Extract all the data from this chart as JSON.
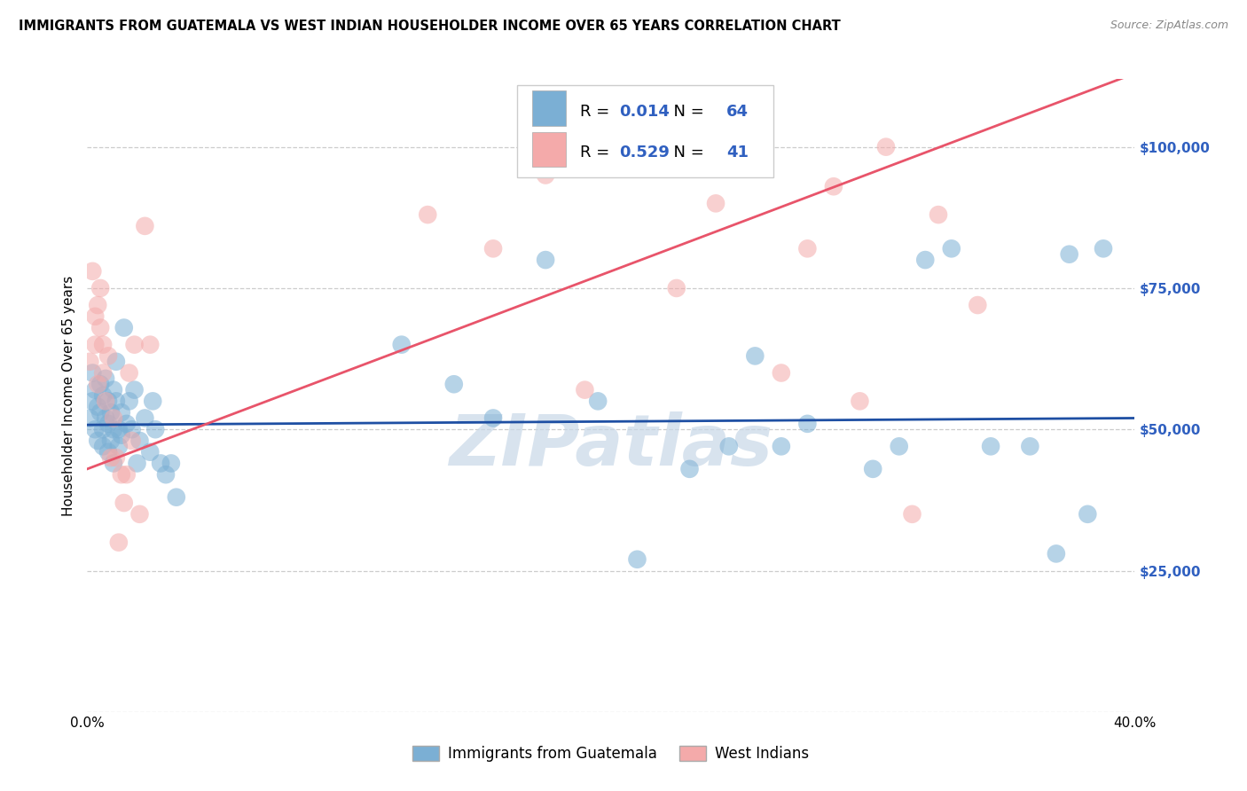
{
  "title": "IMMIGRANTS FROM GUATEMALA VS WEST INDIAN HOUSEHOLDER INCOME OVER 65 YEARS CORRELATION CHART",
  "source": "Source: ZipAtlas.com",
  "ylabel": "Householder Income Over 65 years",
  "xlim": [
    0,
    0.4
  ],
  "ylim": [
    0,
    112000
  ],
  "xticks": [
    0.0,
    0.05,
    0.1,
    0.15,
    0.2,
    0.25,
    0.3,
    0.35,
    0.4
  ],
  "xticklabels": [
    "0.0%",
    "",
    "",
    "",
    "",
    "",
    "",
    "",
    "40.0%"
  ],
  "ytick_positions": [
    0,
    25000,
    50000,
    75000,
    100000
  ],
  "ytick_labels_right": [
    "",
    "$25,000",
    "$50,000",
    "$75,000",
    "$100,000"
  ],
  "blue_R": "0.014",
  "blue_N": "64",
  "pink_R": "0.529",
  "pink_N": "41",
  "blue_color": "#7BAFD4",
  "pink_color": "#F4AAAA",
  "blue_line_color": "#1E4FA3",
  "pink_line_color": "#E8546A",
  "legend_label_blue": "Immigrants from Guatemala",
  "legend_label_pink": "West Indians",
  "watermark": "ZIPatlas",
  "blue_x": [
    0.001,
    0.002,
    0.002,
    0.003,
    0.003,
    0.004,
    0.004,
    0.005,
    0.005,
    0.006,
    0.006,
    0.006,
    0.007,
    0.007,
    0.008,
    0.008,
    0.008,
    0.009,
    0.009,
    0.01,
    0.01,
    0.01,
    0.011,
    0.011,
    0.012,
    0.012,
    0.013,
    0.013,
    0.014,
    0.015,
    0.016,
    0.017,
    0.018,
    0.019,
    0.02,
    0.022,
    0.024,
    0.025,
    0.026,
    0.028,
    0.03,
    0.032,
    0.034,
    0.12,
    0.14,
    0.155,
    0.175,
    0.195,
    0.21,
    0.23,
    0.245,
    0.255,
    0.265,
    0.275,
    0.3,
    0.31,
    0.32,
    0.33,
    0.345,
    0.36,
    0.37,
    0.375,
    0.382,
    0.388
  ],
  "blue_y": [
    52000,
    55000,
    60000,
    50000,
    57000,
    48000,
    54000,
    53000,
    58000,
    50000,
    56000,
    47000,
    52000,
    59000,
    51000,
    55000,
    46000,
    53000,
    48000,
    57000,
    50000,
    44000,
    55000,
    62000,
    50000,
    47000,
    53000,
    49000,
    68000,
    51000,
    55000,
    50000,
    57000,
    44000,
    48000,
    52000,
    46000,
    55000,
    50000,
    44000,
    42000,
    44000,
    38000,
    65000,
    58000,
    52000,
    80000,
    55000,
    27000,
    43000,
    47000,
    63000,
    47000,
    51000,
    43000,
    47000,
    80000,
    82000,
    47000,
    47000,
    28000,
    81000,
    35000,
    82000
  ],
  "pink_x": [
    0.001,
    0.002,
    0.003,
    0.003,
    0.004,
    0.004,
    0.005,
    0.005,
    0.006,
    0.006,
    0.007,
    0.008,
    0.009,
    0.01,
    0.011,
    0.012,
    0.013,
    0.014,
    0.015,
    0.016,
    0.017,
    0.018,
    0.02,
    0.022,
    0.024,
    0.13,
    0.155,
    0.175,
    0.19,
    0.21,
    0.225,
    0.24,
    0.255,
    0.265,
    0.275,
    0.285,
    0.295,
    0.305,
    0.315,
    0.325,
    0.34
  ],
  "pink_y": [
    62000,
    78000,
    70000,
    65000,
    72000,
    58000,
    68000,
    75000,
    60000,
    65000,
    55000,
    63000,
    45000,
    52000,
    45000,
    30000,
    42000,
    37000,
    42000,
    60000,
    48000,
    65000,
    35000,
    86000,
    65000,
    88000,
    82000,
    95000,
    57000,
    97000,
    75000,
    90000,
    105000,
    60000,
    82000,
    93000,
    55000,
    100000,
    35000,
    88000,
    72000
  ],
  "blue_line_x": [
    0.0,
    0.4
  ],
  "blue_line_y": [
    50800,
    52000
  ],
  "pink_line_x": [
    0.0,
    0.4
  ],
  "pink_line_y": [
    43000,
    113000
  ]
}
